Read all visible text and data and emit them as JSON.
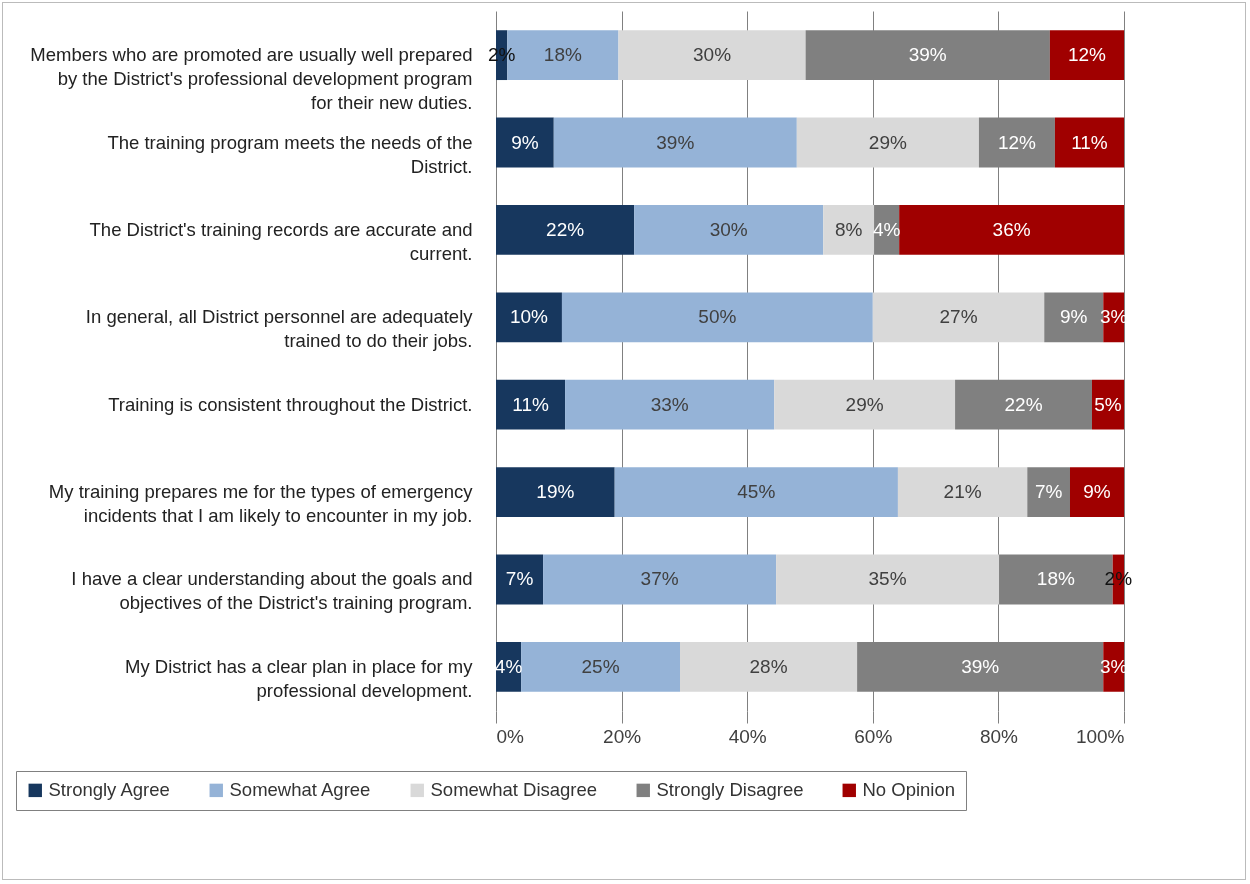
{
  "chart_data": {
    "type": "bar",
    "orientation": "horizontal",
    "stacked": true,
    "categories": [
      "Members who are promoted are usually well prepared by the District's professional development program for their new duties.",
      "The training program meets the needs of the District.",
      "The District's training records are accurate and current.",
      "In general, all District personnel are adequately trained to do their jobs.",
      "Training is consistent throughout the District.",
      "My training prepares me for the types of emergency incidents that I am likely to encounter in my job.",
      "I have a clear understanding about the goals and objectives of the District's training program.",
      "My District has a clear plan in place for my professional development."
    ],
    "series": [
      {
        "name": "Strongly Agree",
        "color": "#17375e",
        "values": [
          1.8,
          9.2,
          22.0,
          10.5,
          11.0,
          18.9,
          7.5,
          4.0
        ],
        "value_labels": [
          "2%",
          "9%",
          "22%",
          "10%",
          "11%",
          "19%",
          "7%",
          "4%"
        ]
      },
      {
        "name": "Somewhat Agree",
        "color": "#95b3d7",
        "values": [
          17.7,
          38.7,
          30.1,
          49.5,
          33.3,
          45.1,
          37.1,
          25.3
        ],
        "value_labels": [
          "18%",
          "39%",
          "30%",
          "50%",
          "33%",
          "45%",
          "37%",
          "25%"
        ]
      },
      {
        "name": "Somewhat Disagree",
        "color": "#d9d9d9",
        "values": [
          29.8,
          29.0,
          8.1,
          27.3,
          28.8,
          20.6,
          35.5,
          28.2
        ],
        "value_labels": [
          "30%",
          "29%",
          "8%",
          "27%",
          "29%",
          "21%",
          "35%",
          "28%"
        ]
      },
      {
        "name": "Strongly Disagree",
        "color": "#808080",
        "values": [
          38.9,
          12.1,
          4.0,
          9.4,
          21.8,
          6.8,
          18.1,
          39.2
        ],
        "value_labels": [
          "39%",
          "12%",
          "4%",
          "9%",
          "22%",
          "7%",
          "18%",
          "39%"
        ]
      },
      {
        "name": "No Opinion",
        "color": "#a00000",
        "values": [
          11.8,
          11.0,
          35.8,
          3.3,
          5.1,
          8.6,
          1.8,
          3.3
        ],
        "value_labels": [
          "12%",
          "11%",
          "36%",
          "3%",
          "5%",
          "9%",
          "2%",
          "3%"
        ]
      }
    ],
    "xlim": [
      0,
      100
    ],
    "xticks": [
      {
        "value": 0,
        "label": "0%"
      },
      {
        "value": 20,
        "label": "20%"
      },
      {
        "value": 40,
        "label": "40%"
      },
      {
        "value": 60,
        "label": "60%"
      },
      {
        "value": 80,
        "label": "80%"
      },
      {
        "value": 100,
        "label": "100%"
      }
    ],
    "grid": "x",
    "legend": "bottom"
  }
}
